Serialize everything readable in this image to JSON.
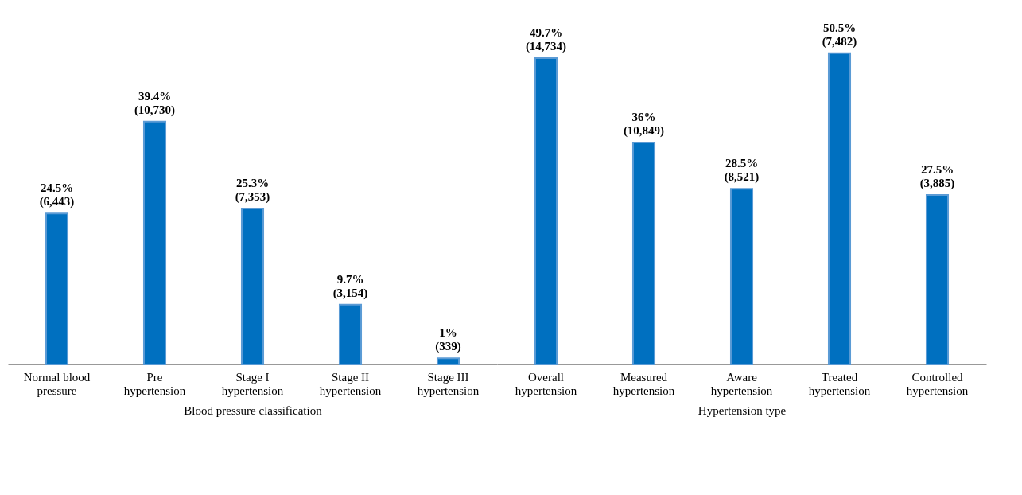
{
  "chart_data": [
    {
      "type": "bar",
      "xlabel": "Blood pressure classification",
      "categories": [
        "Normal blood pressure",
        "Pre hypertension",
        "Stage I hypertension",
        "Stage II hypertension",
        "Stage III hypertension"
      ],
      "values": [
        24.5,
        39.4,
        25.3,
        9.7,
        1
      ],
      "value_labels": [
        "24.5%\n(6,443)",
        "39.4%\n(10,730)",
        "25.3%\n(7,353)",
        "9.7%\n(3,154)",
        "1%\n(339)"
      ],
      "color": "#0070c0"
    },
    {
      "type": "bar",
      "xlabel": "Hypertension type",
      "categories": [
        "Overall hypertension",
        "Measured hypertension",
        "Aware hypertension",
        "Treated hypertension",
        "Controlled hypertension"
      ],
      "values": [
        49.7,
        36,
        28.5,
        50.5,
        27.5
      ],
      "value_labels": [
        "49.7%\n(14,734)",
        "36%\n(10,849)",
        "28.5%\n(8,521)",
        "50.5%\n(7,482)",
        "27.5%\n(3,885)"
      ],
      "color": "#0070c0"
    }
  ]
}
